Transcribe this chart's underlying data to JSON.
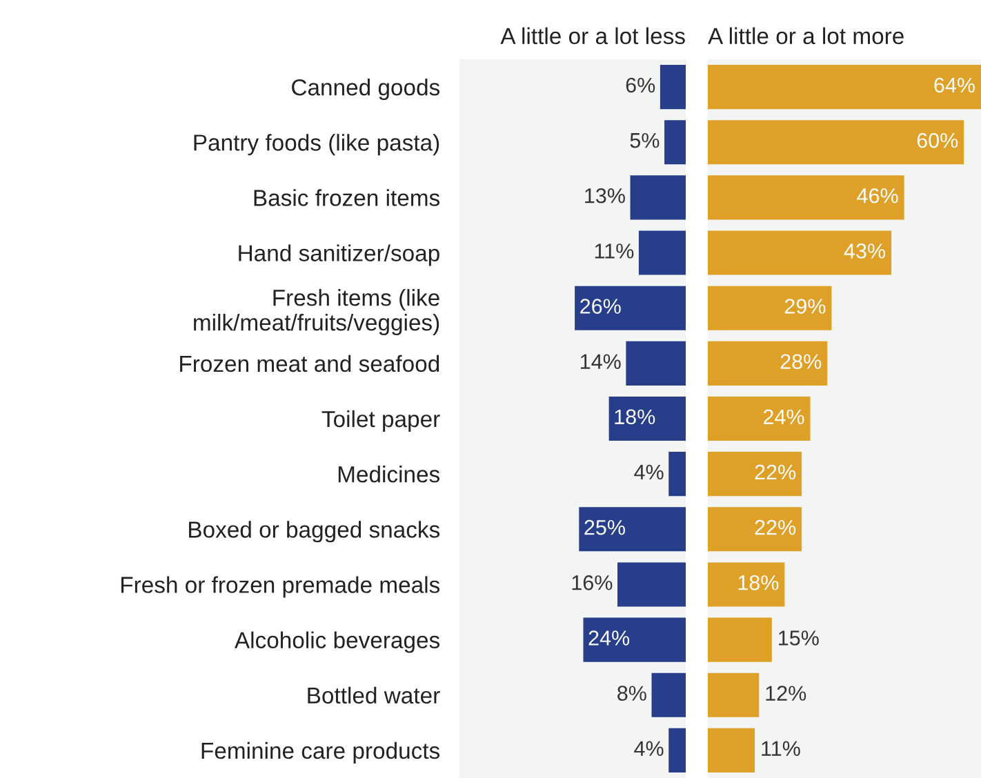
{
  "chart_data": [
    {
      "type": "bar",
      "orientation": "horizontal",
      "title": "A little or a lot less",
      "categories": [
        "Canned goods",
        "Pantry foods (like pasta)",
        "Basic frozen items",
        "Hand sanitizer/soap",
        "Fresh items (like\nmilk/meat/fruits/veggies)",
        "Frozen meat and seafood",
        "Toilet paper",
        "Medicines",
        "Boxed or bagged snacks",
        "Fresh or frozen premade meals",
        "Alcoholic beverages",
        "Bottled water",
        "Feminine care products"
      ],
      "series": [
        {
          "color": "#273f8a",
          "values": [
            6,
            5,
            13,
            11,
            26,
            14,
            18,
            4,
            25,
            16,
            24,
            8,
            4
          ],
          "value_labels": [
            "6%",
            "5%",
            "13%",
            "11%",
            "26%",
            "14%",
            "18%",
            "4%",
            "25%",
            "16%",
            "24%",
            "8%",
            "4%"
          ]
        }
      ],
      "tick_labels": "y"
    },
    {
      "type": "bar",
      "orientation": "horizontal",
      "title": "A little or a lot more",
      "categories": [
        null,
        null,
        null,
        null,
        null,
        null,
        null,
        null,
        null,
        null,
        null,
        null,
        null
      ],
      "series": [
        {
          "color": "#dfa028",
          "values": [
            64,
            60,
            46,
            43,
            29,
            28,
            24,
            22,
            22,
            18,
            15,
            12,
            11
          ],
          "value_labels": [
            "64%",
            "60%",
            "46%",
            "43%",
            "29%",
            "28%",
            "24%",
            "22%",
            "22%",
            "18%",
            "15%",
            "12%",
            "11%"
          ]
        }
      ],
      "tick_labels": false
    }
  ]
}
